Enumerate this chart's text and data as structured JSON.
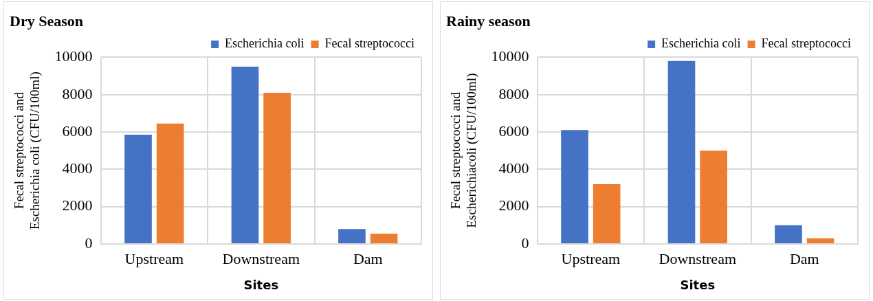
{
  "chart_data": [
    {
      "type": "bar",
      "title": "Dry Season",
      "xlabel": "Sites",
      "ylabel": "Fecal streptococci and Escherichia coli (CFU/100ml)",
      "categories": [
        "Upstream",
        "Downstream",
        "Dam"
      ],
      "series": [
        {
          "name": "Escherichia coli",
          "color": "#4472c4",
          "values": [
            5850,
            9500,
            800
          ]
        },
        {
          "name": "Fecal streptococci",
          "color": "#ed7d31",
          "values": [
            6450,
            8100,
            550
          ]
        }
      ],
      "ylim": [
        0,
        10000
      ],
      "yticks": [
        0,
        2000,
        4000,
        6000,
        8000,
        10000
      ],
      "grid": true,
      "legend": "top right"
    },
    {
      "type": "bar",
      "title": "Rainy season",
      "xlabel": "Sites",
      "ylabel": "Fecal streptococci and Escherichiacoli (CFU/100ml)",
      "categories": [
        "Upstream",
        "Downstream",
        "Dam"
      ],
      "series": [
        {
          "name": "Escherichia coli",
          "color": "#4472c4",
          "values": [
            6100,
            9800,
            1000
          ]
        },
        {
          "name": "Fecal streptococci",
          "color": "#ed7d31",
          "values": [
            3200,
            5000,
            300
          ]
        }
      ],
      "ylim": [
        0,
        10000
      ],
      "yticks": [
        0,
        2000,
        4000,
        6000,
        8000,
        10000
      ],
      "grid": true,
      "legend": "top right"
    }
  ]
}
